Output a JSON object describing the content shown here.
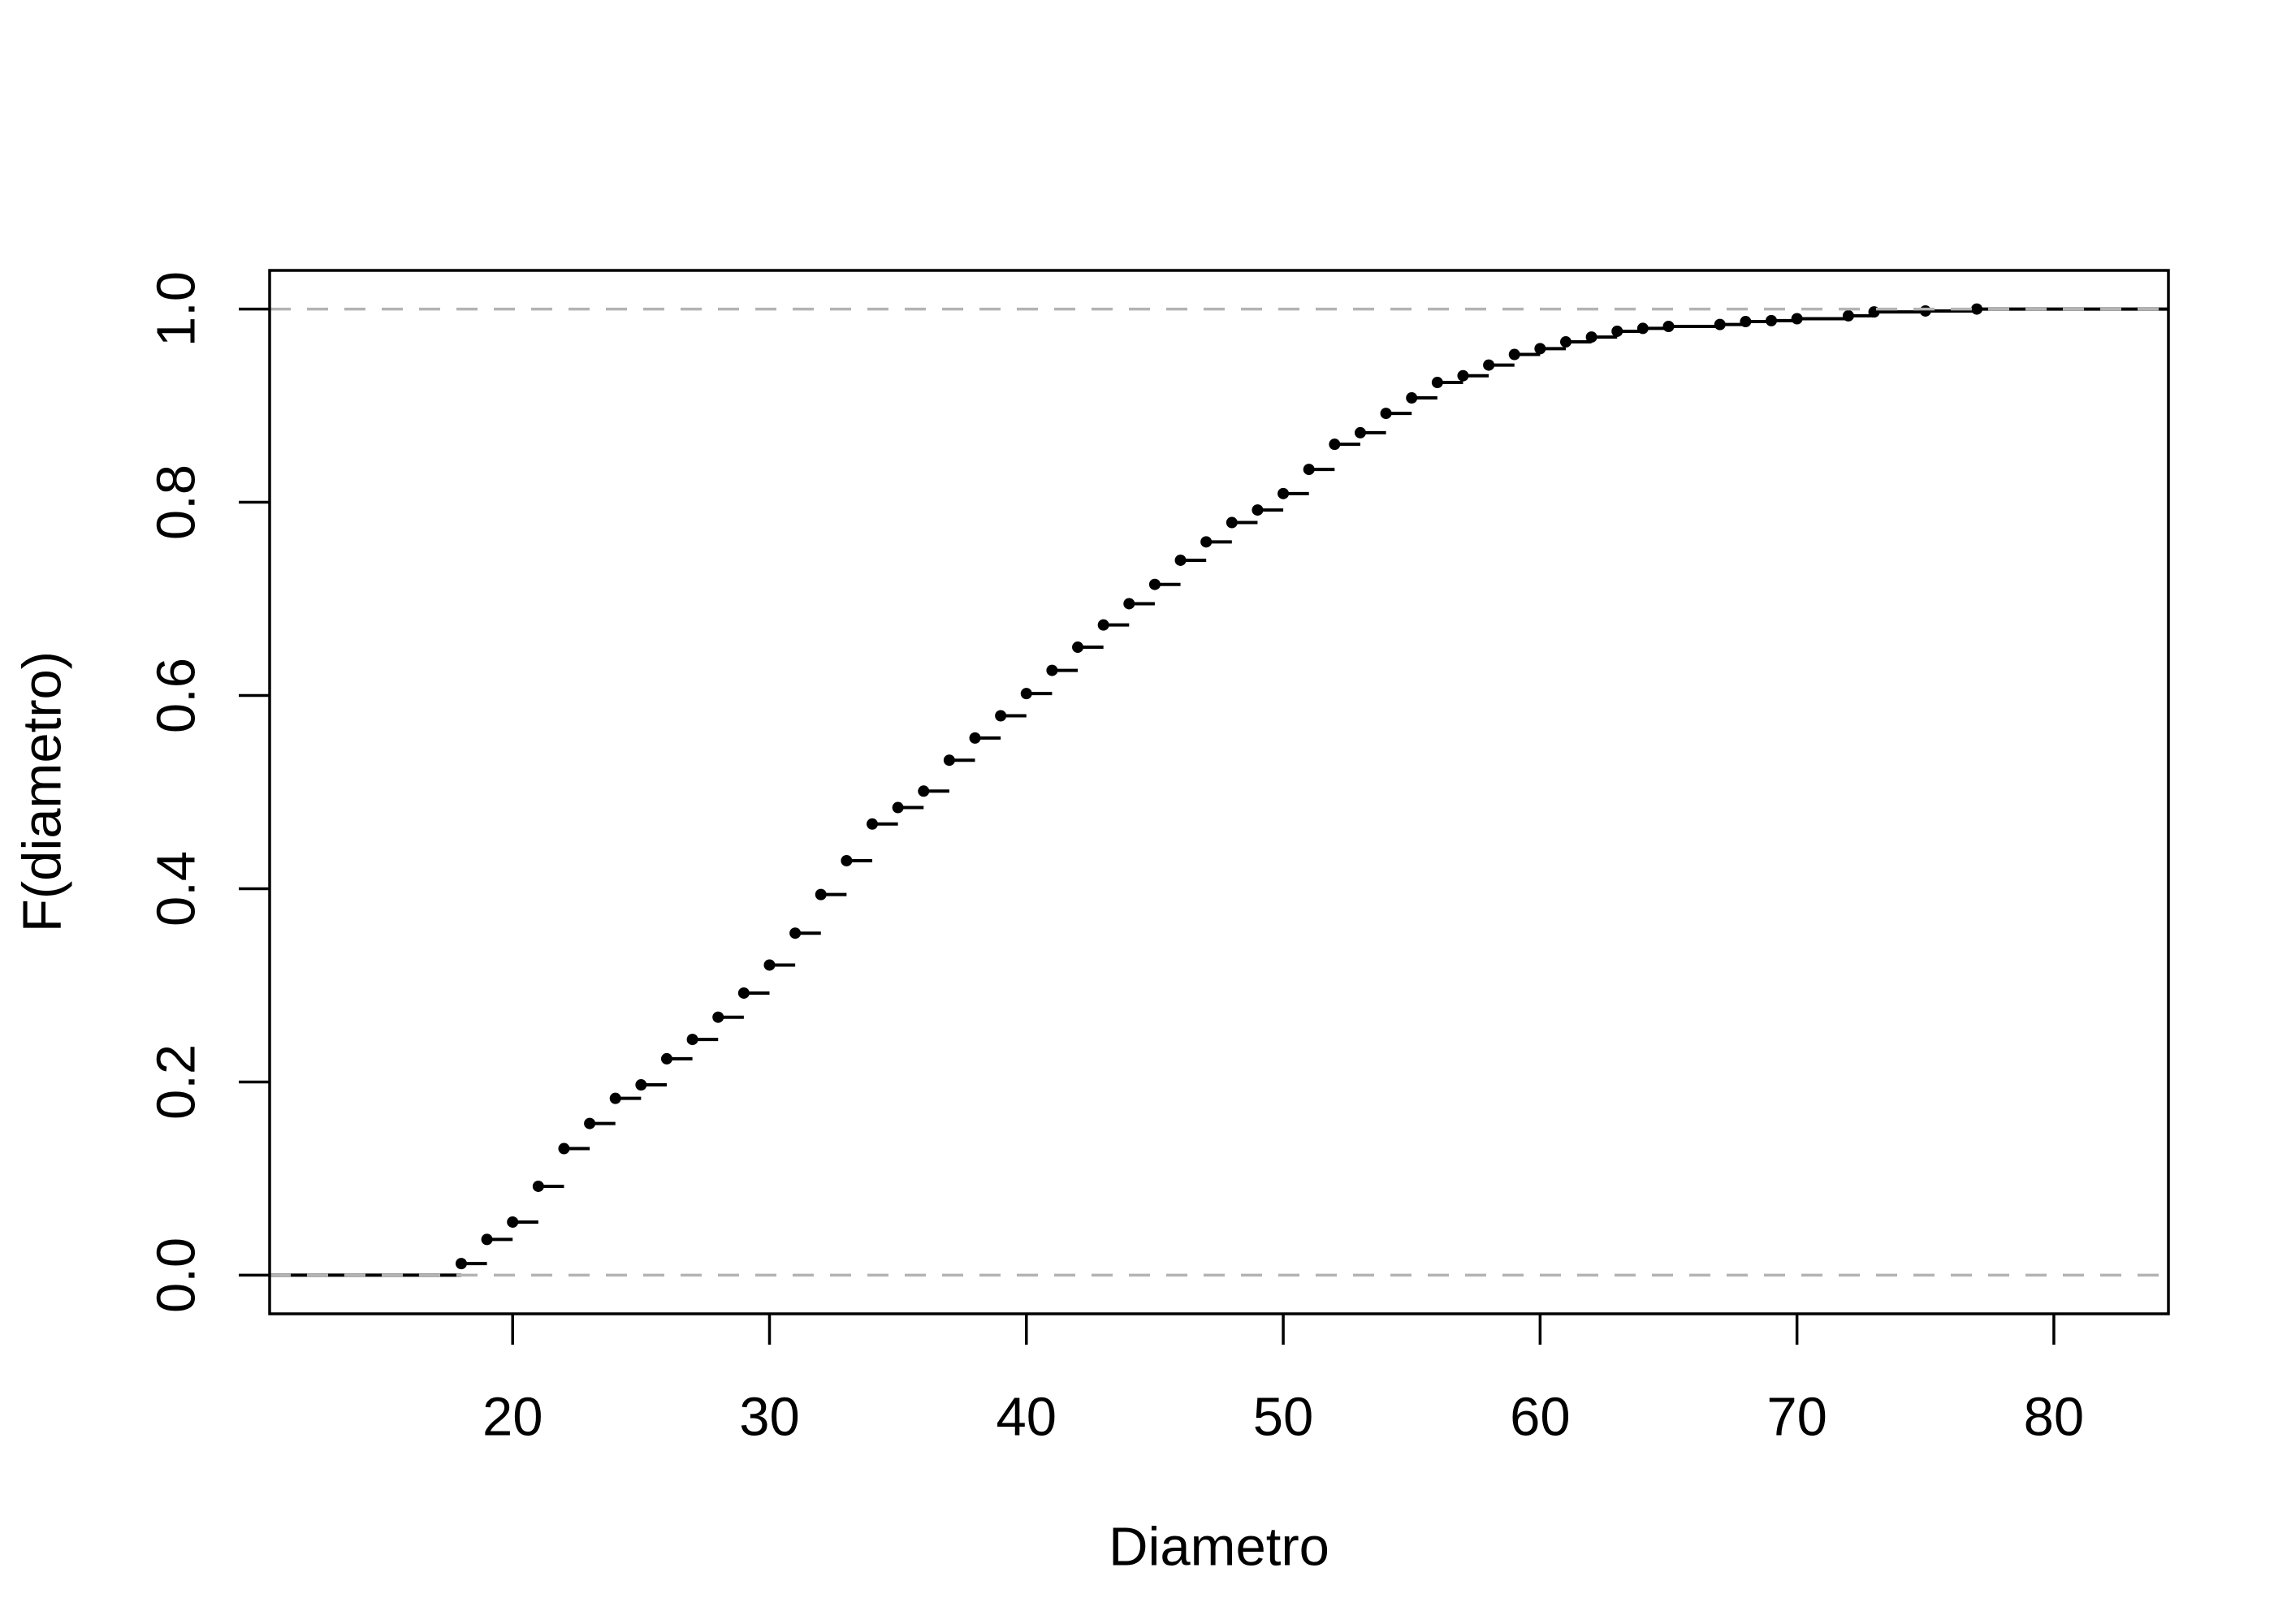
{
  "chart_data": {
    "type": "line",
    "step": true,
    "xlabel": "Diametro",
    "ylabel": "F(diametro)",
    "xlim": [
      10.54,
      84.46
    ],
    "ylim": [
      -0.04,
      1.04
    ],
    "xticks": [
      20,
      30,
      40,
      50,
      60,
      70,
      80
    ],
    "xtick_labels": [
      "20",
      "30",
      "40",
      "50",
      "60",
      "70",
      "80"
    ],
    "yticks": [
      0,
      0.2,
      0.4,
      0.6,
      0.8,
      1.0
    ],
    "ytick_labels": [
      "0.0",
      "0.2",
      "0.4",
      "0.6",
      "0.8",
      "1.0"
    ],
    "reference_lines_y": [
      0,
      1
    ],
    "grid": false,
    "legend": "none",
    "x": [
      18,
      19,
      20,
      21,
      22,
      23,
      24,
      25,
      26,
      27,
      28,
      29,
      30,
      31,
      32,
      33,
      34,
      35,
      36,
      37,
      38,
      39,
      40,
      41,
      42,
      43,
      44,
      45,
      46,
      47,
      48,
      49,
      50,
      51,
      52,
      53,
      54,
      55,
      56,
      57,
      58,
      59,
      60,
      61,
      62,
      63,
      64,
      65,
      67,
      68,
      69,
      70,
      72,
      73,
      75,
      77
    ],
    "y": [
      0.012,
      0.037,
      0.055,
      0.092,
      0.131,
      0.157,
      0.183,
      0.197,
      0.224,
      0.244,
      0.267,
      0.292,
      0.321,
      0.354,
      0.394,
      0.429,
      0.467,
      0.484,
      0.501,
      0.533,
      0.556,
      0.579,
      0.602,
      0.626,
      0.65,
      0.673,
      0.695,
      0.715,
      0.74,
      0.759,
      0.779,
      0.792,
      0.809,
      0.834,
      0.86,
      0.872,
      0.892,
      0.908,
      0.924,
      0.931,
      0.942,
      0.953,
      0.959,
      0.966,
      0.971,
      0.977,
      0.98,
      0.982,
      0.984,
      0.987,
      0.988,
      0.99,
      0.993,
      0.997,
      0.998,
      1.0
    ],
    "colors": {
      "line": "#000000",
      "points": "#000000",
      "reference_lines": "#b3b3b3",
      "box": "#000000"
    }
  }
}
